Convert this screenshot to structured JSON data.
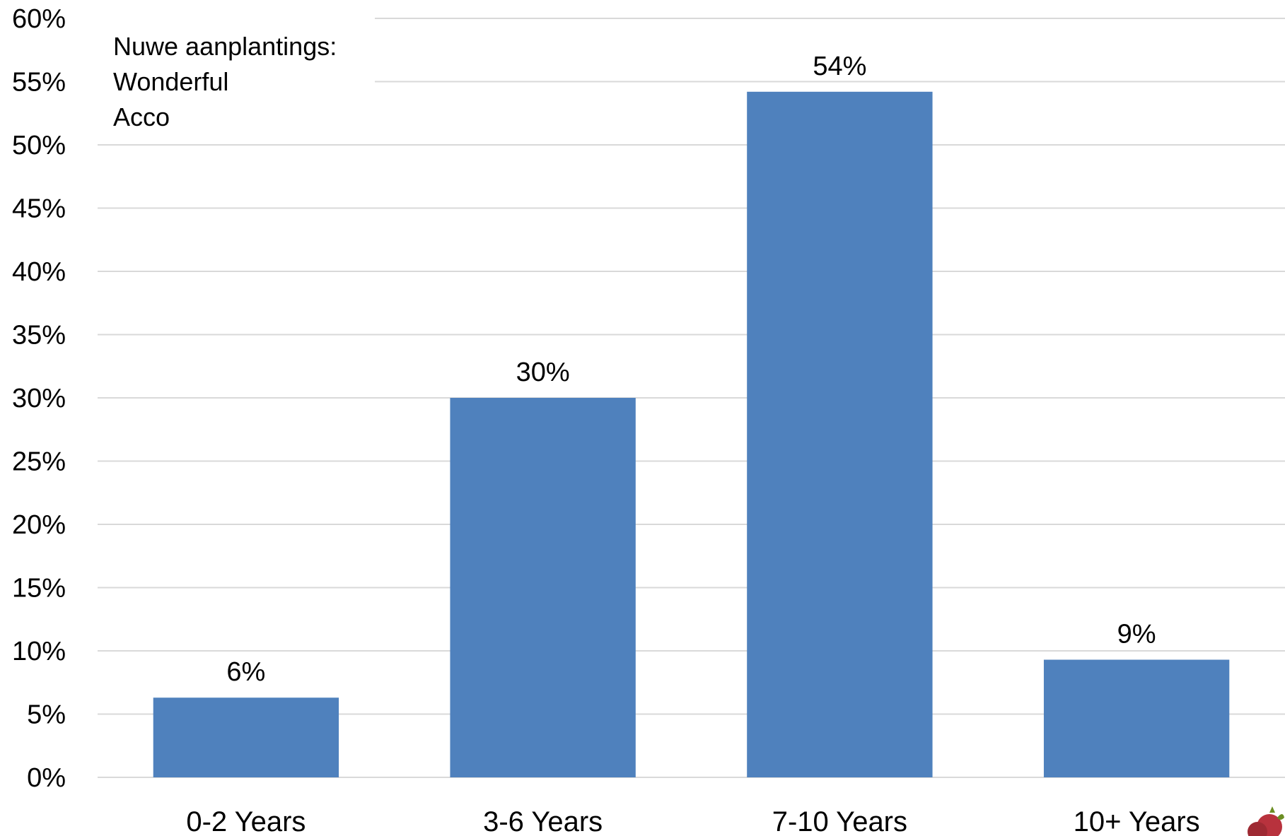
{
  "chart_data": {
    "type": "bar",
    "categories": [
      "0-2 Years",
      "3-6 Years",
      "7-10 Years",
      "10+ Years"
    ],
    "values": [
      6.3,
      30,
      54.2,
      9.3
    ],
    "data_labels": [
      "6%",
      "30%",
      "54%",
      "9%"
    ],
    "ylim": [
      0,
      60
    ],
    "y_ticks": [
      0,
      5,
      10,
      15,
      20,
      25,
      30,
      35,
      40,
      45,
      50,
      55,
      60
    ],
    "y_tick_labels": [
      "0%",
      "5%",
      "10%",
      "15%",
      "20%",
      "25%",
      "30%",
      "35%",
      "40%",
      "45%",
      "50%",
      "55%",
      "60%"
    ],
    "annotation": [
      "Nuwe aanplantings:",
      "Wonderful",
      "Acco"
    ],
    "grid": true,
    "bar_color": "#4f81bd",
    "gridline_color": "#d9d9d9"
  }
}
